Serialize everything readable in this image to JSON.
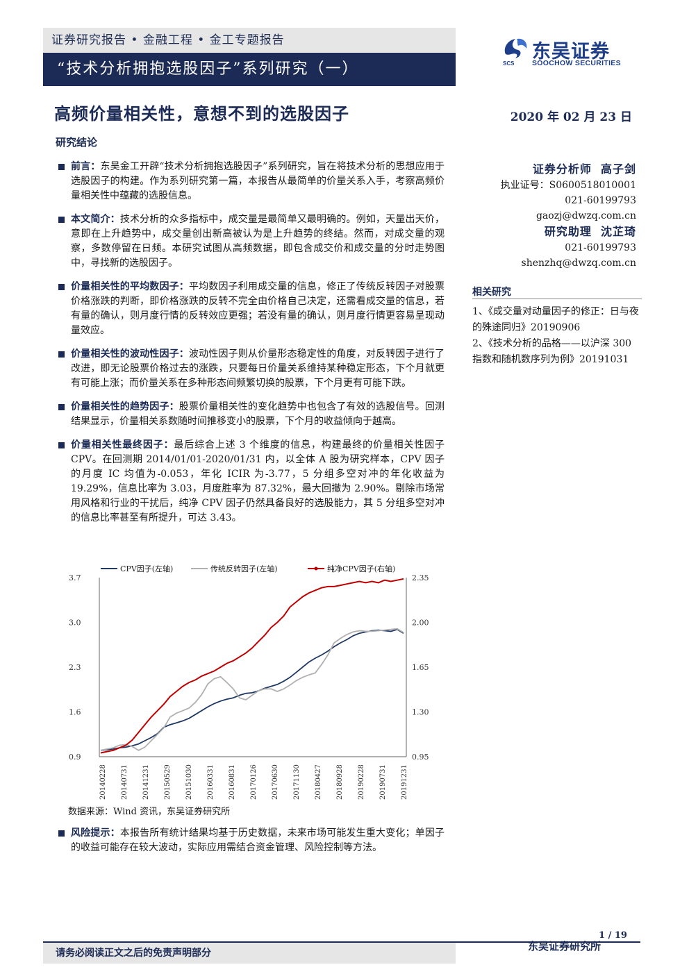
{
  "header": {
    "category": "证券研究报告 • 金融工程 • 金工专题报告",
    "series_title": "“技术分析拥抱选股因子”系列研究（一）"
  },
  "logo": {
    "cn": "东吴证券",
    "en": "SOOCHOW SECURITIES",
    "abbr": "SCS"
  },
  "report": {
    "headline": "高频价量相关性，意想不到的选股因子",
    "date": "2020 年 02 月 23 日",
    "section_title": "研究结论"
  },
  "bullets": [
    {
      "head": "前言：",
      "text": "东吴金工开辟“技术分析拥抱选股因子”系列研究，旨在将技术分析的思想应用于选股因子的构建。作为系列研究第一篇，本报告从最简单的价量关系入手，考察高频价量相关性中蕴藏的选股信息。"
    },
    {
      "head": "本文简介：",
      "text": "技术分析的众多指标中，成交量是最简单又最明确的。例如，天量出天价，意即在上升趋势中，成交量创出新高被认为是上升趋势的终结。然而，对成交量的观察，多数停留在日频。本研究试图从高频数据，即包含成交价和成交量的分时走势图中，寻找新的选股因子。"
    },
    {
      "head": "价量相关性的平均数因子：",
      "text": "平均数因子利用成交量的信息，修正了传统反转因子对股票价格涨跌的判断，即价格涨跌的反转不完全由价格自己决定，还需看成交量的信息，若有量的确认，则月度行情的反转效应更强；若没有量的确认，则月度行情更容易呈现动量效应。"
    },
    {
      "head": "价量相关性的波动性因子：",
      "text": "波动性因子则从价量形态稳定性的角度，对反转因子进行了改进，即无论股票价格过去的涨跌，只要每日价量关系维持某种稳定形态，下个月就更有可能上涨；而价量关系在多种形态间频繁切换的股票，下个月更有可能下跌。"
    },
    {
      "head": "价量相关性的趋势因子：",
      "text": "股票价量相关性的变化趋势中也包含了有效的选股信号。回测结果显示，价量相关系数随时间推移变小的股票，下个月的收益倾向于越高。"
    },
    {
      "head": "价量相关性最终因子：",
      "text": "最后综合上述 3 个维度的信息，构建最终的价量相关性因子 CPV。在回测期 2014/01/01-2020/01/31 内，以全体 A 股为研究样本，CPV 因子的月度 IC 均值为-0.053，年化 ICIR 为-3.77，5 分组多空对冲的年化收益为 19.29%，信息比率为 3.03，月度胜率为 87.32%，最大回撤为 2.90%。剔除市场常用风格和行业的干扰后，纯净 CPV 因子仍然具备良好的选股能力，其 5 分组多空对冲的信息比率甚至有所提升，可达 3.43。"
    }
  ],
  "analysts": [
    {
      "role": "证券分析师",
      "name": "高子剑",
      "lines": [
        "执业证号：S0600518010001",
        "021-60199793",
        "gaozj@dwzq.com.cn"
      ]
    },
    {
      "role": "研究助理",
      "name": "沈芷琦",
      "lines": [
        "021-60199793",
        "shenzhq@dwzq.com.cn"
      ]
    }
  ],
  "related": {
    "title": "相关研究",
    "items": [
      "1、《成交量对动量因子的修正：日与夜的殊途同归》20190906",
      "2、《技术分析的品格——以沪深 300 指数和随机数序列为例》20191031"
    ]
  },
  "chart_data": {
    "type": "line",
    "series": [
      {
        "name": "CPV因子(左轴)",
        "axis": "left",
        "color": "#1f3864",
        "values": [
          1.0,
          1.01,
          1.02,
          1.04,
          1.05,
          1.07,
          1.1,
          1.15,
          1.2,
          1.26,
          1.36,
          1.4,
          1.43,
          1.46,
          1.5,
          1.56,
          1.62,
          1.68,
          1.73,
          1.77,
          1.8,
          1.82,
          1.86,
          1.89,
          1.9,
          1.93,
          1.97,
          2.0,
          2.03,
          2.08,
          2.14,
          2.22,
          2.3,
          2.38,
          2.44,
          2.49,
          2.55,
          2.62,
          2.68,
          2.73,
          2.79,
          2.83,
          2.85,
          2.87,
          2.88,
          2.87,
          2.86,
          2.89,
          2.83
        ]
      },
      {
        "name": "传统反转因子(左轴)",
        "axis": "left",
        "color": "#b0b0b0",
        "values": [
          1.0,
          1.02,
          1.04,
          1.08,
          1.09,
          1.06,
          1.0,
          1.05,
          1.15,
          1.25,
          1.35,
          1.52,
          1.58,
          1.62,
          1.66,
          1.75,
          1.87,
          2.04,
          2.12,
          2.15,
          2.06,
          1.96,
          1.82,
          1.79,
          1.86,
          1.93,
          1.96,
          1.96,
          1.92,
          1.96,
          2.02,
          2.09,
          2.14,
          2.18,
          2.21,
          2.34,
          2.49,
          2.68,
          2.75,
          2.81,
          2.85,
          2.87,
          2.86,
          2.86,
          2.87,
          2.88,
          2.89,
          2.9,
          2.84
        ]
      },
      {
        "name": "纯净CPV因子(右轴)",
        "axis": "right",
        "color": "#c00000",
        "values": [
          0.98,
          0.99,
          1.0,
          1.02,
          1.04,
          1.08,
          1.14,
          1.2,
          1.26,
          1.31,
          1.36,
          1.42,
          1.46,
          1.5,
          1.53,
          1.55,
          1.58,
          1.6,
          1.62,
          1.65,
          1.68,
          1.7,
          1.73,
          1.76,
          1.8,
          1.85,
          1.9,
          1.96,
          2.0,
          2.05,
          2.12,
          2.16,
          2.2,
          2.23,
          2.25,
          2.27,
          2.28,
          2.28,
          2.29,
          2.3,
          2.31,
          2.32,
          2.31,
          2.32,
          2.31,
          2.33,
          2.32,
          2.33,
          2.34
        ]
      }
    ],
    "x_ticks": [
      "20140228",
      "20140731",
      "20141231",
      "20150529",
      "20151030",
      "20160331",
      "20160831",
      "20170126",
      "20170630",
      "20171130",
      "20180427",
      "20180928",
      "20190228",
      "20190731",
      "20191231"
    ],
    "left_axis": {
      "ticks": [
        "3.7",
        "3.0",
        "2.3",
        "1.6",
        "0.9"
      ],
      "ylim": [
        0.9,
        3.7
      ]
    },
    "right_axis": {
      "ticks": [
        "2.35",
        "2.00",
        "1.65",
        "1.30",
        "0.95"
      ],
      "ylim": [
        0.95,
        2.35
      ]
    }
  },
  "source": "数据来源：Wind 资讯，东吴证券研究所",
  "risk": {
    "head": "风险提示：",
    "text": "本报告所有统计结果均基于历史数据，未来市场可能发生重大变化；单因子的收益可能存在较大波动，实际应用需结合资金管理、风险控制等方法。"
  },
  "footer": {
    "page": "1 / 19",
    "disclaimer": "请务必阅读正文之后的免责声明部分",
    "org": "东吴证券研究所"
  }
}
